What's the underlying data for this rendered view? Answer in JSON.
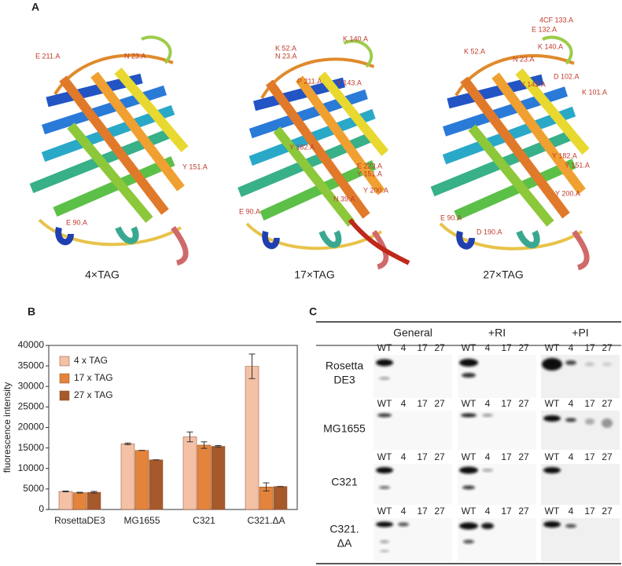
{
  "panel_labels": [
    "A",
    "B",
    "C"
  ],
  "panel_a": {
    "structures": [
      {
        "caption": "4×TAG",
        "residues": [
          "E 211.A",
          "N 23.A",
          "Y 151.A",
          "E 90.A"
        ]
      },
      {
        "caption": "17×TAG",
        "residues": [
          "K 52.A",
          "N 23.A",
          "K 140.A",
          "P 211.A",
          "Y 143.A",
          "Y 182.A",
          "E 223.A",
          "Y 151.A",
          "Y 200.A",
          "E 90.A",
          "N 39.A"
        ]
      },
      {
        "caption": "27×TAG",
        "residues": [
          "4CF 133.A",
          "E 132.A",
          "K 140.A",
          "K 52.A",
          "N 23.A",
          "D 102.A",
          "K 101.A",
          "Y 143.A",
          "Y 182.A",
          "Y 151.A",
          "Y 200.A",
          "D 190.A",
          "E 90.A"
        ]
      }
    ]
  },
  "chart_data": {
    "type": "bar",
    "ylabel": "fluorescence intensity",
    "categories": [
      "RosettaDE3",
      "MG1655",
      "C321",
      "C321.ΔA"
    ],
    "series": [
      {
        "name": "4 x TAG",
        "color": "#f4c0a6",
        "values": [
          4400,
          16000,
          17700,
          34900
        ],
        "errors": [
          100,
          200,
          1200,
          3000
        ]
      },
      {
        "name": "17 x TAG",
        "color": "#e4843c",
        "values": [
          4100,
          14400,
          15700,
          5500
        ],
        "errors": [
          100,
          0,
          800,
          1000
        ]
      },
      {
        "name": "27 x TAG",
        "color": "#a65a2c",
        "values": [
          4200,
          12100,
          15400,
          5600
        ],
        "errors": [
          200,
          0,
          200,
          0
        ]
      }
    ],
    "ylim": [
      0,
      40000
    ],
    "yticks": [
      0,
      5000,
      10000,
      15000,
      20000,
      25000,
      30000,
      35000,
      40000
    ],
    "legend": "top-left"
  },
  "panel_c": {
    "conditions": [
      "General",
      "+RI",
      "+PI"
    ],
    "lanes": [
      "WT",
      "4",
      "17",
      "27"
    ],
    "strains": [
      [
        "Rosetta",
        "DE3"
      ],
      [
        "MG1655"
      ],
      [
        "C321"
      ],
      [
        "C321.",
        "ΔA"
      ]
    ]
  }
}
